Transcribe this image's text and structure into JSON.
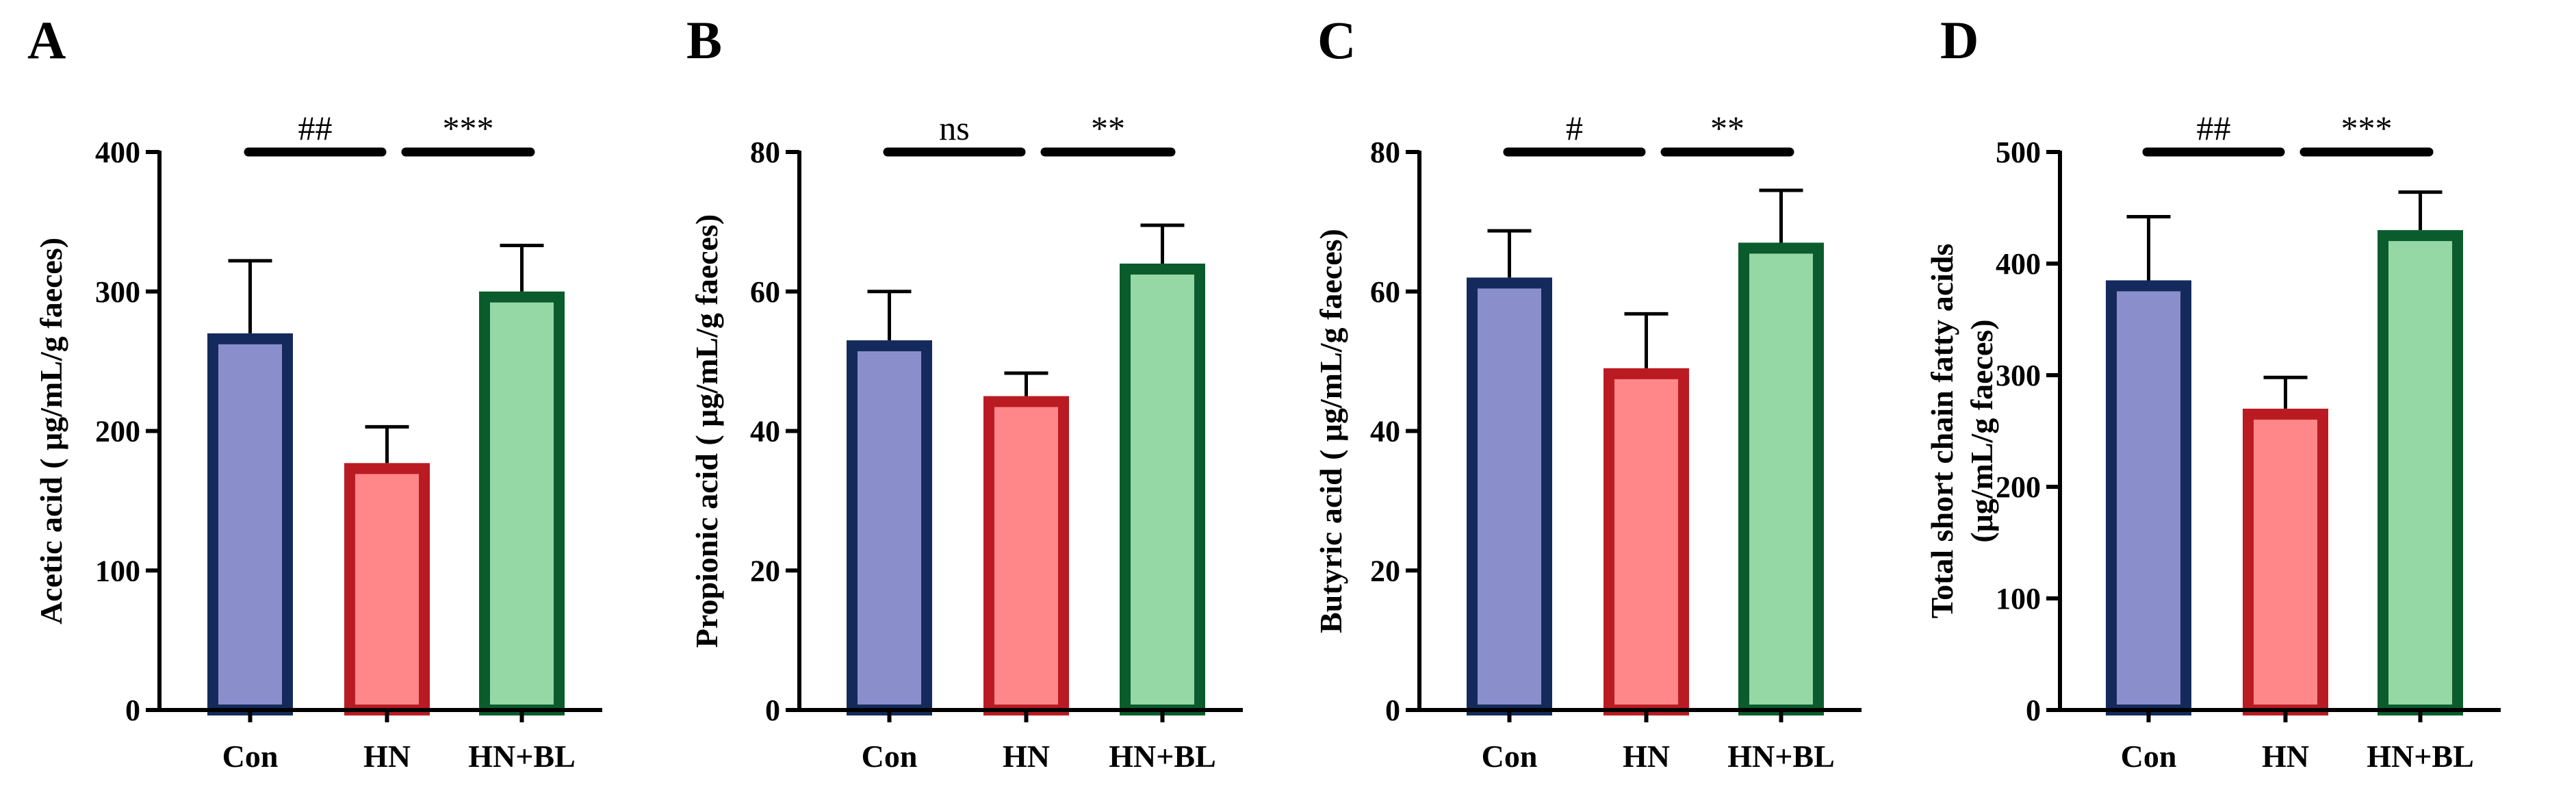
{
  "colors": {
    "Con": {
      "fill": "#8A8FCC",
      "stroke": "#142A5C"
    },
    "HN": {
      "fill": "#FF878A",
      "stroke": "#BA1B23"
    },
    "HN+BL": {
      "fill": "#96D7A6",
      "stroke": "#0B5C2C"
    }
  },
  "chart_data": [
    {
      "type": "bar",
      "panel": "A",
      "ylabel": [
        "Acetic acid ( μg/mL/g faeces)"
      ],
      "categories": [
        "Con",
        "HN",
        "HN+BL"
      ],
      "values": [
        270,
        177,
        300
      ],
      "errors": [
        52,
        26,
        33
      ],
      "ylim": [
        0,
        400
      ],
      "yticks": [
        0,
        100,
        200,
        300,
        400
      ],
      "significance": [
        {
          "from": 0,
          "to": 1,
          "label": "##"
        },
        {
          "from": 1,
          "to": 2,
          "label": "***"
        }
      ]
    },
    {
      "type": "bar",
      "panel": "B",
      "ylabel": [
        "Propionic acid ( μg/mL/g faeces)"
      ],
      "categories": [
        "Con",
        "HN",
        "HN+BL"
      ],
      "values": [
        53,
        45,
        64
      ],
      "errors": [
        7,
        3.3,
        5.5
      ],
      "ylim": [
        0,
        80
      ],
      "yticks": [
        0,
        20,
        40,
        60,
        80
      ],
      "significance": [
        {
          "from": 0,
          "to": 1,
          "label": "ns"
        },
        {
          "from": 1,
          "to": 2,
          "label": "**"
        }
      ]
    },
    {
      "type": "bar",
      "panel": "C",
      "ylabel": [
        "Butyric acid ( μg/mL/g faeces)"
      ],
      "categories": [
        "Con",
        "HN",
        "HN+BL"
      ],
      "values": [
        62,
        49,
        67
      ],
      "errors": [
        6.7,
        7.8,
        7.5
      ],
      "ylim": [
        0,
        80
      ],
      "yticks": [
        0,
        20,
        40,
        60,
        80
      ],
      "significance": [
        {
          "from": 0,
          "to": 1,
          "label": "#"
        },
        {
          "from": 1,
          "to": 2,
          "label": "**"
        }
      ]
    },
    {
      "type": "bar",
      "panel": "D",
      "ylabel": [
        "Total short chain fatty acids",
        "(μg/mL/g faeces)"
      ],
      "categories": [
        "Con",
        "HN",
        "HN+BL"
      ],
      "values": [
        385,
        270,
        430
      ],
      "errors": [
        57,
        28,
        34
      ],
      "ylim": [
        0,
        500
      ],
      "yticks": [
        0,
        100,
        200,
        300,
        400,
        500
      ],
      "significance": [
        {
          "from": 0,
          "to": 1,
          "label": "##"
        },
        {
          "from": 1,
          "to": 2,
          "label": "***"
        }
      ]
    }
  ]
}
